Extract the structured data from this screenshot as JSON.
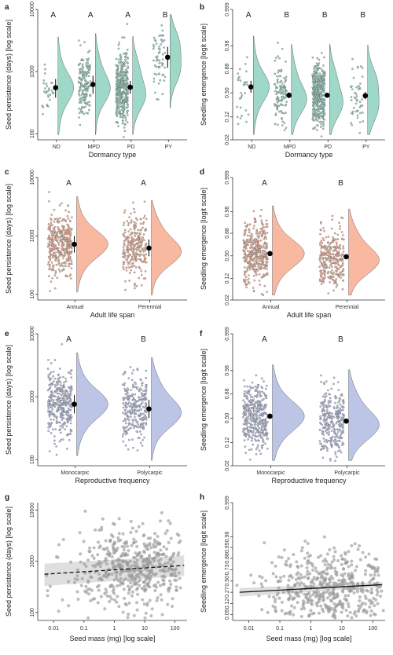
{
  "colors": {
    "green": "#9fd8c8",
    "orange": "#f9b9a0",
    "blue": "#bcc5e6",
    "grey": "#9a9a9a",
    "band": "#d9d9d9"
  },
  "chart_data": [
    {
      "panel": "a",
      "type": "violin",
      "scale": "log",
      "xlabel": "Dormancy type",
      "ylabel": "Seed persistence (days) [log scale]",
      "categories": [
        "ND",
        "MPD",
        "PD",
        "PY"
      ],
      "letters": [
        "A",
        "A",
        "A",
        "B"
      ],
      "ylim": [
        80,
        10000
      ],
      "yticks": [
        100,
        1000,
        10000
      ],
      "yticklabels": [
        "100",
        "1000",
        "10000"
      ],
      "means": [
        550,
        620,
        560,
        1700
      ],
      "ci_low": [
        380,
        440,
        440,
        1150
      ],
      "ci_high": [
        760,
        860,
        710,
        2500
      ],
      "n": [
        30,
        170,
        380,
        60
      ],
      "color": "green"
    },
    {
      "panel": "b",
      "type": "violin",
      "scale": "logit",
      "xlabel": "Dormancy type",
      "ylabel": "Seedling emergence [logit scale]",
      "categories": [
        "ND",
        "MPD",
        "PD",
        "PY"
      ],
      "letters": [
        "A",
        "B",
        "B",
        "B"
      ],
      "ylim": [
        0.02,
        0.999
      ],
      "yticks": [
        0.02,
        0.12,
        0.5,
        0.88,
        0.98,
        0.999
      ],
      "yticklabels": [
        "0.02",
        "0.12",
        "0.50",
        "0.88",
        "0.98",
        "0.999"
      ],
      "means": [
        0.62,
        0.45,
        0.45,
        0.44
      ],
      "ci_low": [
        0.5,
        0.39,
        0.41,
        0.37
      ],
      "ci_high": [
        0.73,
        0.51,
        0.49,
        0.52
      ],
      "n": [
        30,
        120,
        420,
        50
      ],
      "color": "green"
    },
    {
      "panel": "c",
      "type": "violin",
      "scale": "log",
      "xlabel": "Adult life span",
      "ylabel": "Seed persistence (days) [log scale]",
      "categories": [
        "Annual",
        "Perennial"
      ],
      "letters": [
        "A",
        "A"
      ],
      "ylim": [
        80,
        10000
      ],
      "yticks": [
        100,
        1000,
        10000
      ],
      "yticklabels": [
        "100",
        "1000",
        "10000"
      ],
      "means": [
        720,
        620
      ],
      "ci_low": [
        520,
        450
      ],
      "ci_high": [
        1000,
        870
      ],
      "n": [
        360,
        260
      ],
      "color": "orange"
    },
    {
      "panel": "d",
      "type": "violin",
      "scale": "logit",
      "xlabel": "Adult life span",
      "ylabel": "Seedling emergence [logit scale]",
      "categories": [
        "Annual",
        "Perennial"
      ],
      "letters": [
        "A",
        "B"
      ],
      "ylim": [
        0.02,
        0.999
      ],
      "yticks": [
        0.02,
        0.12,
        0.5,
        0.88,
        0.98,
        0.999
      ],
      "yticklabels": [
        "0.02",
        "0.12",
        "0.50",
        "0.88",
        "0.98",
        "0.999"
      ],
      "means": [
        0.55,
        0.48
      ],
      "ci_low": [
        0.5,
        0.43
      ],
      "ci_high": [
        0.6,
        0.53
      ],
      "n": [
        380,
        300
      ],
      "color": "orange"
    },
    {
      "panel": "e",
      "type": "violin",
      "scale": "log",
      "xlabel": "Reproductive frequency",
      "ylabel": "Seed persistence (days) [log scale]",
      "categories": [
        "Monocarpic",
        "Polycarpic"
      ],
      "letters": [
        "A",
        "B"
      ],
      "ylim": [
        80,
        10000
      ],
      "yticks": [
        100,
        1000,
        10000
      ],
      "yticklabels": [
        "100",
        "1000",
        "10000"
      ],
      "means": [
        760,
        640
      ],
      "ci_low": [
        540,
        460
      ],
      "ci_high": [
        1060,
        890
      ],
      "n": [
        350,
        270
      ],
      "color": "blue"
    },
    {
      "panel": "f",
      "type": "violin",
      "scale": "logit",
      "xlabel": "Reproductive frequency",
      "ylabel": "Seedling emergence [logit scale]",
      "categories": [
        "Monocarpic",
        "Polycarpic"
      ],
      "letters": [
        "A",
        "B"
      ],
      "ylim": [
        0.02,
        0.999
      ],
      "yticks": [
        0.02,
        0.12,
        0.5,
        0.88,
        0.98,
        0.999
      ],
      "yticklabels": [
        "0.02",
        "0.12",
        "0.50",
        "0.88",
        "0.98",
        "0.999"
      ],
      "means": [
        0.54,
        0.44
      ],
      "ci_low": [
        0.49,
        0.39
      ],
      "ci_high": [
        0.59,
        0.49
      ],
      "n": [
        380,
        300
      ],
      "color": "blue"
    },
    {
      "panel": "g",
      "type": "scatter",
      "scale_x": "log",
      "scale_y": "log",
      "xlabel": "Seed mass (mg) [log scale]",
      "ylabel": "Seed persistence (days) [log scale]",
      "xlim": [
        0.003,
        250
      ],
      "xticks": [
        0.01,
        0.1,
        1,
        10,
        100
      ],
      "xticklabels": [
        "0.01",
        "0.1",
        "1",
        "10",
        "100"
      ],
      "ylim": [
        70,
        14000
      ],
      "yticks": [
        100,
        1000,
        10000
      ],
      "yticklabels": [
        "100",
        "1000",
        "10000"
      ],
      "fit": {
        "x": [
          0.005,
          200
        ],
        "y": [
          560,
          830
        ],
        "band_low": [
          330,
          520
        ],
        "band_high": [
          900,
          1300
        ],
        "dashed": true
      },
      "n": 560
    },
    {
      "panel": "h",
      "type": "scatter",
      "scale_x": "log",
      "scale_y": "logit",
      "xlabel": "Seed mass (mg) [log scale]",
      "ylabel": "Seedling emergence [logit scale]",
      "xlim": [
        0.003,
        250
      ],
      "xticks": [
        0.01,
        0.1,
        1,
        10,
        100
      ],
      "xticklabels": [
        "0.01",
        "0.1",
        "1",
        "10",
        "100"
      ],
      "ylim": [
        0.03,
        0.999
      ],
      "yticks": [
        0.05,
        0.12,
        0.27,
        0.5,
        0.73,
        0.88,
        0.95,
        0.98,
        0.999
      ],
      "yticklabels": [
        "0.05",
        "0.12",
        "0.27",
        "0.50",
        "0.73",
        "0.88",
        "0.95",
        "0.98",
        "0.999"
      ],
      "fit": {
        "x": [
          0.005,
          200
        ],
        "y": [
          0.27,
          0.42
        ],
        "band_low": [
          0.2,
          0.37
        ],
        "band_high": [
          0.35,
          0.48
        ],
        "dashed": false
      },
      "n": 560
    }
  ]
}
